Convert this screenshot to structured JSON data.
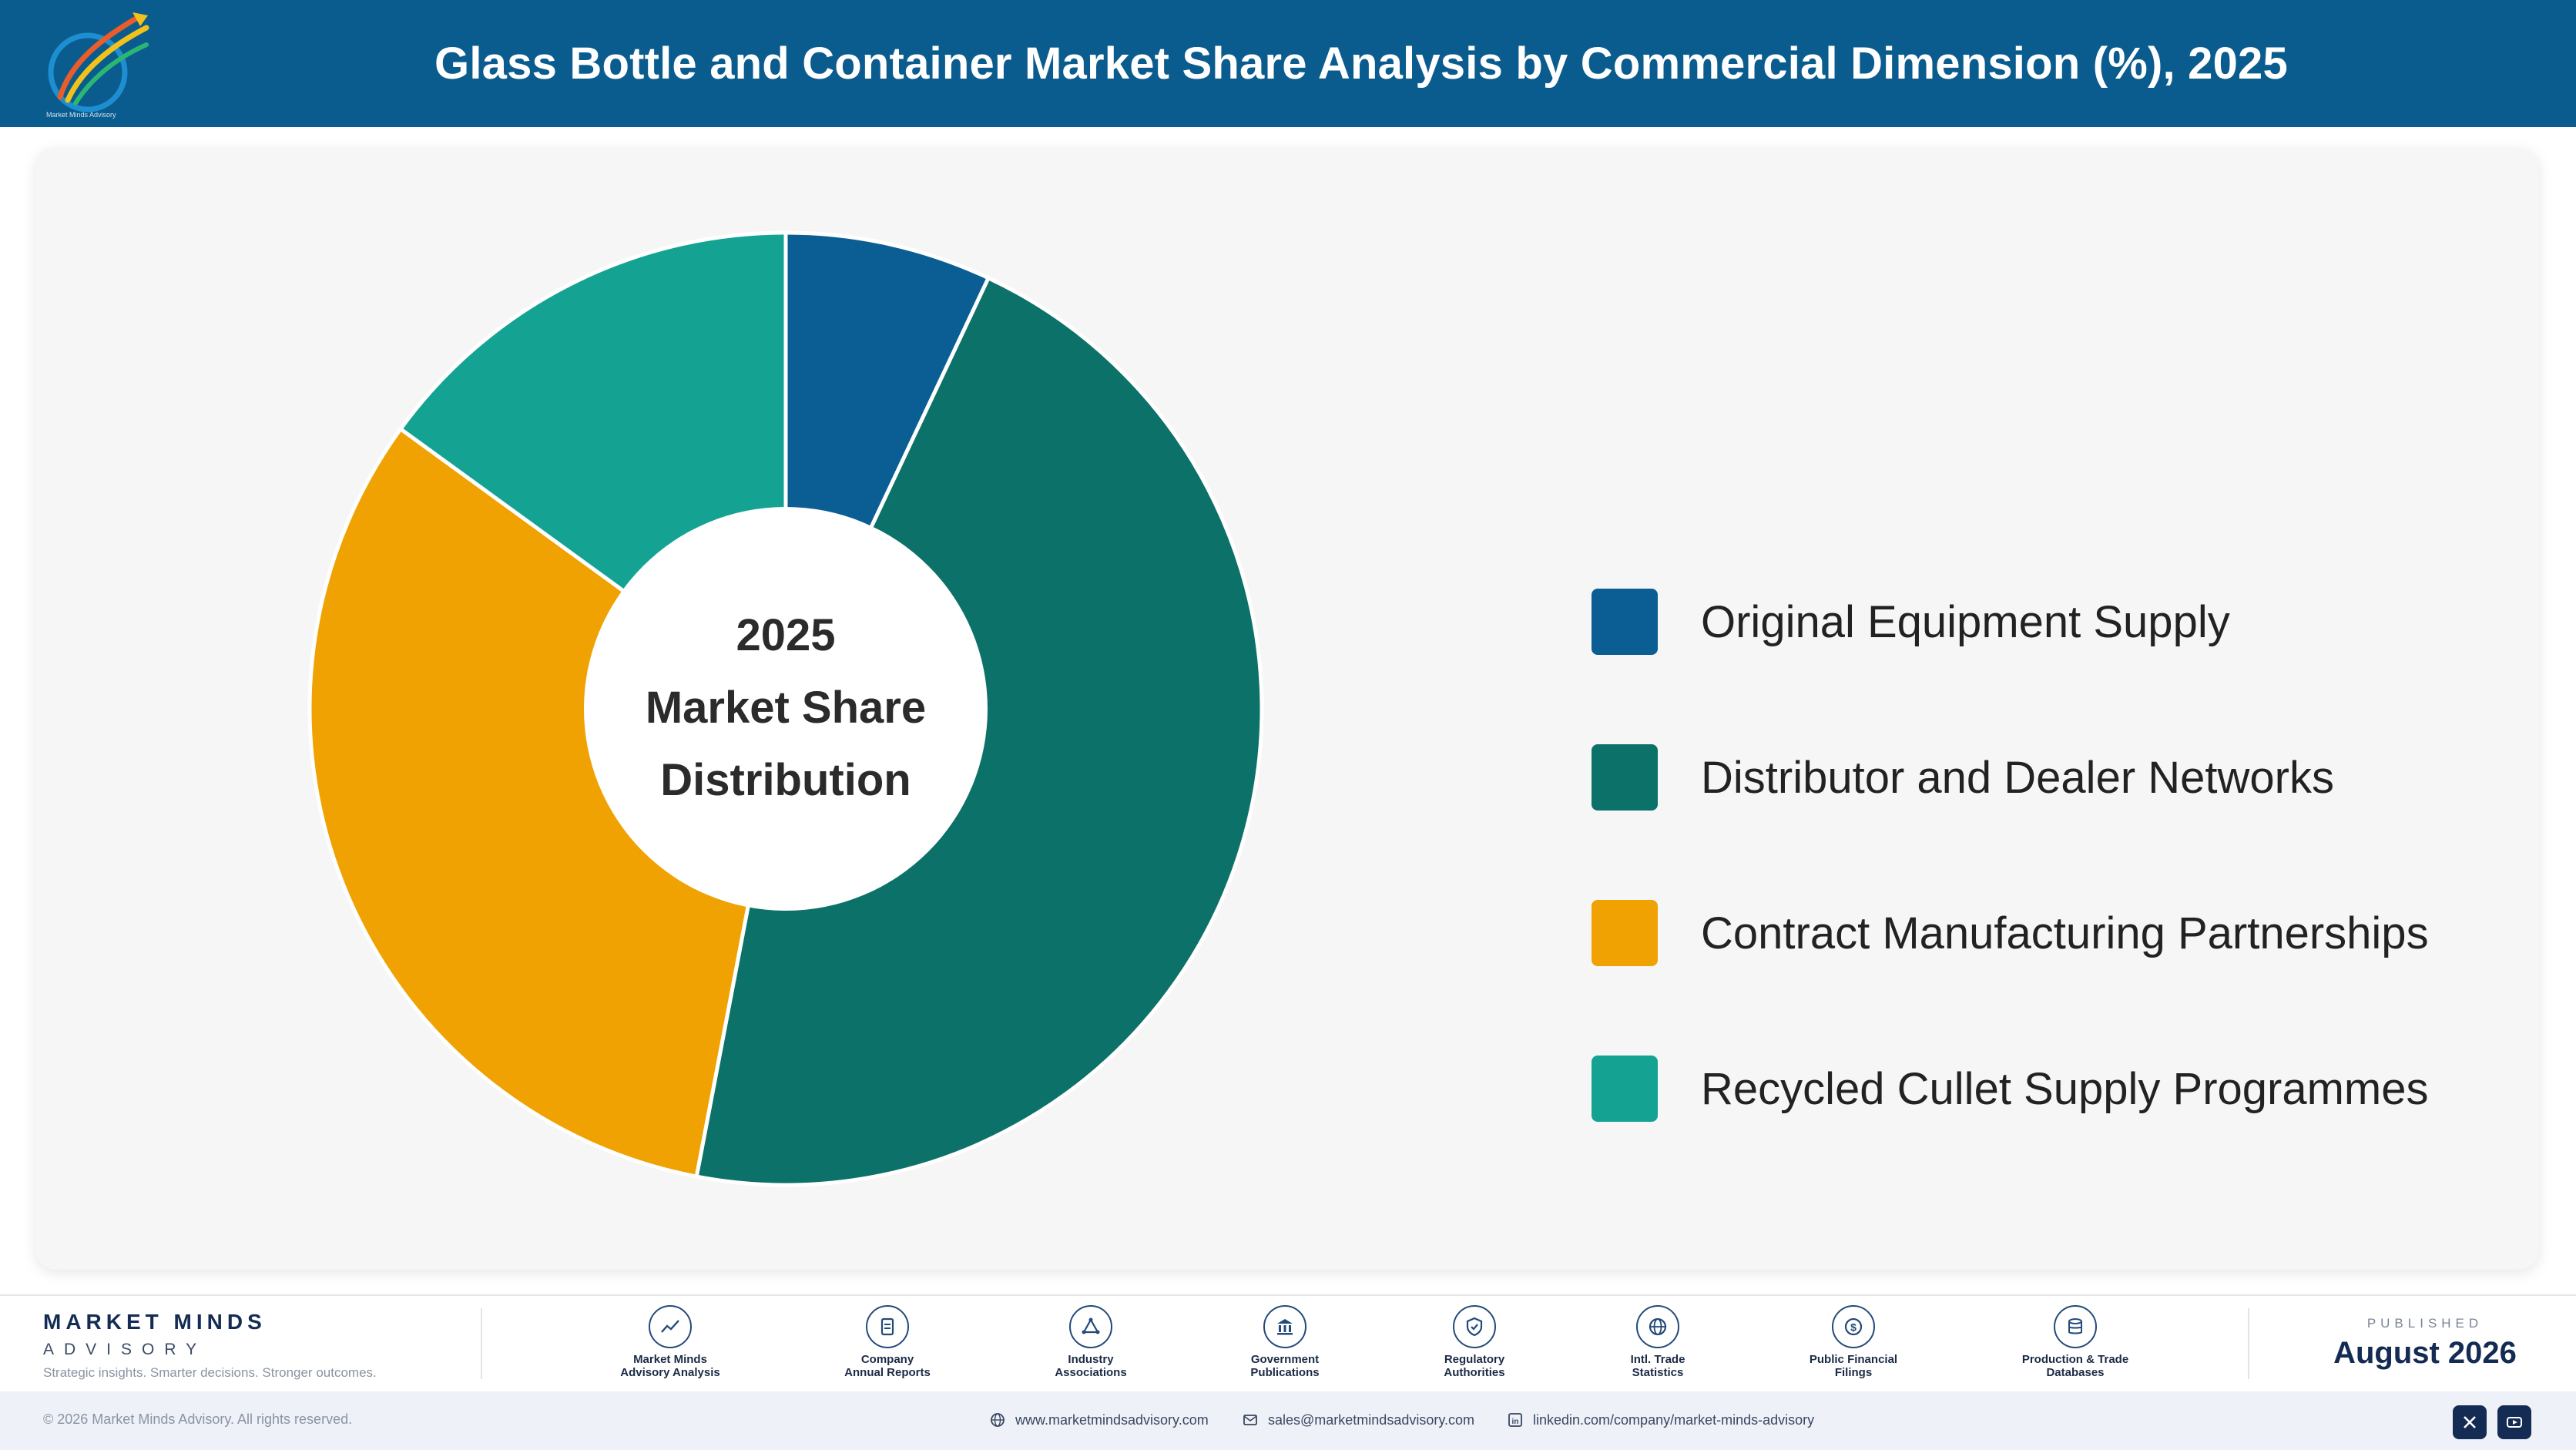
{
  "header": {
    "title": "Glass Bottle and Container Market Share Analysis by Commercial Dimension (%), 2025",
    "logo_icon": "market-minds-logo-icon",
    "logo_text": "Market Minds Advisory"
  },
  "chart_data": {
    "type": "pie",
    "style": "donut",
    "center_text": [
      "2025",
      "Market Share",
      "Distribution"
    ],
    "legend_position": "right",
    "categories": [
      "Original Equipment Supply",
      "Distributor and Dealer Networks",
      "Contract Manufacturing Partnerships",
      "Recycled Cullet Supply Programmes"
    ],
    "values": [
      7,
      46,
      32,
      15
    ],
    "colors": [
      "#0b5e93",
      "#0c7168",
      "#f0a202",
      "#14a393"
    ]
  },
  "footer": {
    "brand_name": "MARKET MINDS",
    "brand_sub": "ADVISORY",
    "brand_tagline": "Strategic insights. Smarter decisions. Stronger outcomes.",
    "sources": [
      {
        "icon": "trend-chart-icon",
        "line1": "Market Minds",
        "line2": "Advisory Analysis"
      },
      {
        "icon": "document-icon",
        "line1": "Company",
        "line2": "Annual Reports"
      },
      {
        "icon": "network-icon",
        "line1": "Industry",
        "line2": "Associations"
      },
      {
        "icon": "government-building-icon",
        "line1": "Government",
        "line2": "Publications"
      },
      {
        "icon": "shield-check-icon",
        "line1": "Regulatory",
        "line2": "Authorities"
      },
      {
        "icon": "globe-icon",
        "line1": "Intl. Trade",
        "line2": "Statistics"
      },
      {
        "icon": "dollar-coin-icon",
        "line1": "Public Financial",
        "line2": "Filings"
      },
      {
        "icon": "database-icon",
        "line1": "Production & Trade",
        "line2": "Databases"
      }
    ],
    "published_label": "PUBLISHED",
    "published_date": "August 2026",
    "copyright": "© 2026 Market Minds Advisory. All rights reserved.",
    "website": "www.marketmindsadvisory.com",
    "email": "sales@marketmindsadvisory.com",
    "linkedin": "linkedin.com/company/market-minds-advisory",
    "social": [
      {
        "icon": "x-icon"
      },
      {
        "icon": "youtube-icon"
      }
    ]
  }
}
